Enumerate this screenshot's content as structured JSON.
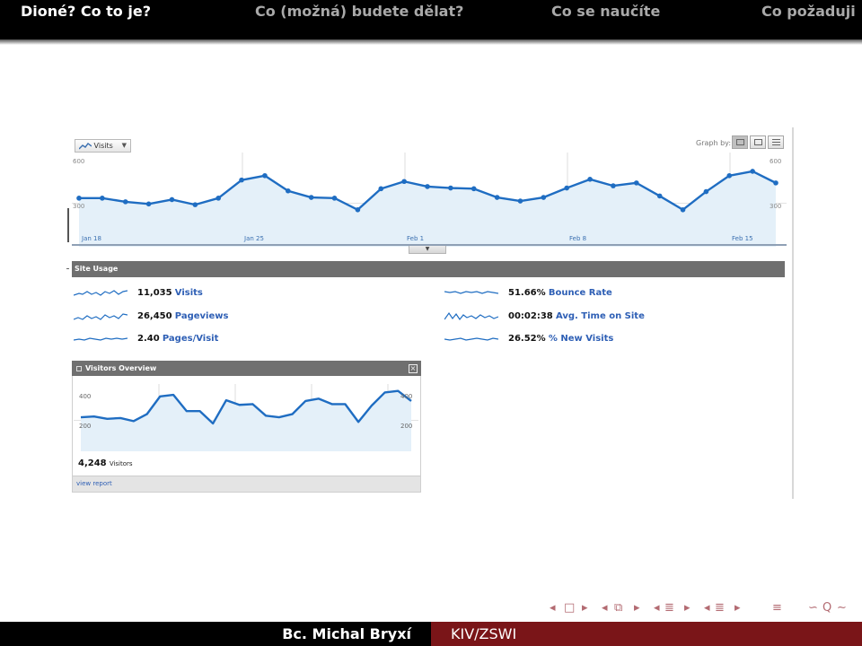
{
  "header": {
    "nav": [
      {
        "label": "Dioné? Co to je?",
        "active": true
      },
      {
        "label": "Co (možná) budete dělat?",
        "active": false
      },
      {
        "label": "Co se naučíte",
        "active": false
      },
      {
        "label": "Co požaduji",
        "active": false
      }
    ]
  },
  "footer": {
    "author": "Bc. Michal Bryxí",
    "course": "KIV/ZSWI"
  },
  "analytics": {
    "metric_selector": "Visits",
    "graph_by_label": "Graph by:",
    "main_chart": {
      "y_top_label": "600",
      "y_mid_label": "300",
      "ylim": [
        0,
        600
      ],
      "dates": [
        "Jan 18",
        "Jan 25",
        "Feb 1",
        "Feb 8",
        "Feb 15"
      ],
      "values": [
        335,
        335,
        310,
        295,
        325,
        290,
        335,
        460,
        490,
        385,
        340,
        335,
        255,
        400,
        450,
        415,
        405,
        400,
        340,
        315,
        340,
        405,
        465,
        420,
        440,
        350,
        255,
        380,
        490,
        520,
        440
      ]
    },
    "site_usage": {
      "title": "Site Usage",
      "metrics": [
        {
          "value": "11,035",
          "label": "Visits"
        },
        {
          "value": "26,450",
          "label": "Pageviews"
        },
        {
          "value": "2.40",
          "label": "Pages/Visit"
        },
        {
          "value": "51.66%",
          "label": "Bounce Rate"
        },
        {
          "value": "00:02:38",
          "label": "Avg. Time on Site"
        },
        {
          "value": "26.52%",
          "label": "% New Visits"
        }
      ]
    },
    "visitors_overview": {
      "title": "Visitors Overview",
      "y_top_label": "400",
      "y_mid_label": "200",
      "ylim": [
        0,
        400
      ],
      "values": [
        220,
        225,
        210,
        215,
        195,
        240,
        355,
        365,
        260,
        260,
        180,
        330,
        300,
        305,
        230,
        220,
        240,
        325,
        340,
        305,
        305,
        190,
        295,
        380,
        390,
        325
      ],
      "visitors_value": "4,248",
      "visitors_label": "Visitors",
      "view_report": "view report"
    }
  },
  "beamer_nav": {
    "icons": [
      "arrow-left-icon",
      "frame-icon",
      "arrow-right-icon",
      "subsection-icon",
      "section-icon",
      "align-icon",
      "search-icon"
    ]
  }
}
